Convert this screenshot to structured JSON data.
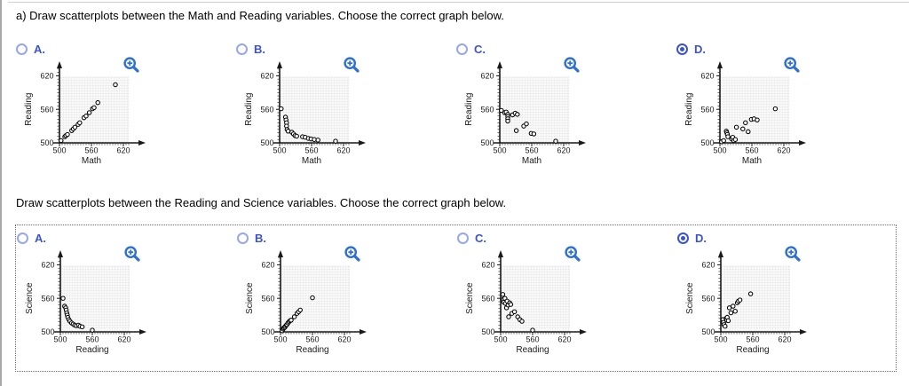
{
  "page": {
    "colors": {
      "option_blue": "#3b53cf",
      "radio_unselected_ring": "#98a7e8",
      "magnifier_blue": "#2d6fd2",
      "grid_fill": "#e8e8e8",
      "grid_line": "#ffffff",
      "axis_color": "#1a1a1a",
      "dashed_border": "#6e6e6e"
    },
    "icons": {
      "zoom_icon": "magnifier-with-plus"
    }
  },
  "questions": [
    {
      "text": "a) Draw scatterplots between the Math and Reading variables. Choose the correct graph below.",
      "options": [
        {
          "letter": "A.",
          "selected": false,
          "chart": {
            "type": "scatter",
            "xlabel": "Math",
            "ylabel": "Reading",
            "xticks": [
              500,
              560,
              620
            ],
            "yticks": [
              620,
              560,
              500
            ],
            "xlim": [
              500,
              630
            ],
            "ylim": [
              500,
              625
            ],
            "points": [
              [
                503,
                504
              ],
              [
                510,
                511
              ],
              [
                512,
                513
              ],
              [
                515,
                515
              ],
              [
                523,
                522
              ],
              [
                526,
                525
              ],
              [
                529,
                528
              ],
              [
                535,
                533
              ],
              [
                538,
                536
              ],
              [
                546,
                545
              ],
              [
                550,
                548
              ],
              [
                556,
                554
              ],
              [
                562,
                561
              ],
              [
                565,
                563
              ],
              [
                572,
                572
              ],
              [
                605,
                604
              ]
            ]
          }
        },
        {
          "letter": "B.",
          "selected": false,
          "chart": {
            "type": "scatter",
            "xlabel": "Math",
            "ylabel": "Reading",
            "xticks": [
              500,
              560,
              620
            ],
            "yticks": [
              620,
              560,
              500
            ],
            "xlim": [
              500,
              630
            ],
            "ylim": [
              500,
              625
            ],
            "points": [
              [
                503,
                561
              ],
              [
                511,
                546
              ],
              [
                512,
                541
              ],
              [
                513,
                536
              ],
              [
                513,
                530
              ],
              [
                514,
                524
              ],
              [
                516,
                521
              ],
              [
                523,
                519
              ],
              [
                526,
                516
              ],
              [
                529,
                513
              ],
              [
                532,
                512
              ],
              [
                543,
                511
              ],
              [
                548,
                510
              ],
              [
                554,
                508
              ],
              [
                559,
                507
              ],
              [
                565,
                506
              ],
              [
                572,
                505
              ],
              [
                605,
                503
              ]
            ]
          }
        },
        {
          "letter": "C.",
          "selected": false,
          "chart": {
            "type": "scatter",
            "xlabel": "Math",
            "ylabel": "Reading",
            "xticks": [
              500,
              560,
              620
            ],
            "yticks": [
              620,
              560,
              500
            ],
            "xlim": [
              500,
              630
            ],
            "ylim": [
              500,
              625
            ],
            "points": [
              [
                503,
                558
              ],
              [
                509,
                554
              ],
              [
                512,
                555
              ],
              [
                515,
                551
              ],
              [
                515,
                547
              ],
              [
                515,
                543
              ],
              [
                515,
                539
              ],
              [
                524,
                550
              ],
              [
                529,
                553
              ],
              [
                533,
                551
              ],
              [
                531,
                522
              ],
              [
                545,
                530
              ],
              [
                550,
                534
              ],
              [
                559,
                517
              ],
              [
                564,
                516
              ],
              [
                605,
                503
              ]
            ]
          }
        },
        {
          "letter": "D.",
          "selected": true,
          "chart": {
            "type": "scatter",
            "xlabel": "Math",
            "ylabel": "Reading",
            "xticks": [
              500,
              560,
              620
            ],
            "yticks": [
              620,
              560,
              500
            ],
            "xlim": [
              500,
              630
            ],
            "ylim": [
              500,
              625
            ],
            "points": [
              [
                503,
                502
              ],
              [
                507,
                504
              ],
              [
                512,
                521
              ],
              [
                513,
                518
              ],
              [
                514,
                515
              ],
              [
                515,
                511
              ],
              [
                522,
                507
              ],
              [
                524,
                510
              ],
              [
                526,
                504
              ],
              [
                529,
                506
              ],
              [
                531,
                528
              ],
              [
                543,
                525
              ],
              [
                548,
                536
              ],
              [
                553,
                520
              ],
              [
                559,
                542
              ],
              [
                564,
                543
              ],
              [
                570,
                541
              ],
              [
                604,
                561
              ]
            ]
          }
        }
      ]
    },
    {
      "text": "Draw scatterplots between the Reading and Science variables. Choose the correct graph below.",
      "options": [
        {
          "letter": "A.",
          "selected": false,
          "chart": {
            "type": "scatter",
            "xlabel": "Reading",
            "ylabel": "Science",
            "xticks": [
              500,
              560,
              620
            ],
            "yticks": [
              620,
              560,
              500
            ],
            "xlim": [
              500,
              630
            ],
            "ylim": [
              500,
              625
            ],
            "points": [
              [
                505,
                560
              ],
              [
                508,
                546
              ],
              [
                510,
                543
              ],
              [
                511,
                539
              ],
              [
                512,
                534
              ],
              [
                513,
                530
              ],
              [
                514,
                526
              ],
              [
                516,
                522
              ],
              [
                518,
                519
              ],
              [
                521,
                516
              ],
              [
                524,
                514
              ],
              [
                527,
                512
              ],
              [
                530,
                511
              ],
              [
                534,
                512
              ],
              [
                537,
                510
              ],
              [
                541,
                509
              ],
              [
                560,
                503
              ]
            ]
          }
        },
        {
          "letter": "B.",
          "selected": false,
          "chart": {
            "type": "scatter",
            "xlabel": "Reading",
            "ylabel": "Science",
            "xticks": [
              500,
              560,
              620
            ],
            "yticks": [
              620,
              560,
              500
            ],
            "xlim": [
              500,
              630
            ],
            "ylim": [
              500,
              625
            ],
            "points": [
              [
                503,
                502
              ],
              [
                505,
                505
              ],
              [
                506,
                507
              ],
              [
                508,
                508
              ],
              [
                509,
                510
              ],
              [
                511,
                512
              ],
              [
                512,
                513
              ],
              [
                514,
                516
              ],
              [
                516,
                518
              ],
              [
                518,
                520
              ],
              [
                520,
                521
              ],
              [
                526,
                527
              ],
              [
                531,
                533
              ],
              [
                534,
                536
              ],
              [
                537,
                539
              ],
              [
                560,
                561
              ]
            ]
          }
        },
        {
          "letter": "C.",
          "selected": false,
          "chart": {
            "type": "scatter",
            "xlabel": "Reading",
            "ylabel": "Science",
            "xticks": [
              500,
              560,
              620
            ],
            "yticks": [
              620,
              560,
              500
            ],
            "xlim": [
              500,
              630
            ],
            "ylim": [
              500,
              625
            ],
            "points": [
              [
                504,
                567
              ],
              [
                505,
                558
              ],
              [
                506,
                553
              ],
              [
                508,
                560
              ],
              [
                509,
                551
              ],
              [
                511,
                543
              ],
              [
                512,
                555
              ],
              [
                514,
                548
              ],
              [
                515,
                527
              ],
              [
                517,
                552
              ],
              [
                519,
                549
              ],
              [
                521,
                533
              ],
              [
                526,
                536
              ],
              [
                532,
                527
              ],
              [
                536,
                522
              ],
              [
                540,
                519
              ],
              [
                560,
                503
              ]
            ]
          }
        },
        {
          "letter": "D.",
          "selected": true,
          "chart": {
            "type": "scatter",
            "xlabel": "Reading",
            "ylabel": "Science",
            "xticks": [
              500,
              560,
              620
            ],
            "yticks": [
              620,
              560,
              500
            ],
            "xlim": [
              500,
              630
            ],
            "ylim": [
              500,
              625
            ],
            "points": [
              [
                504,
                522
              ],
              [
                505,
                517
              ],
              [
                506,
                513
              ],
              [
                508,
                510
              ],
              [
                510,
                524
              ],
              [
                511,
                521
              ],
              [
                512,
                526
              ],
              [
                514,
                520
              ],
              [
                516,
                543
              ],
              [
                519,
                534
              ],
              [
                523,
                546
              ],
              [
                527,
                537
              ],
              [
                531,
                552
              ],
              [
                533,
                555
              ],
              [
                536,
                557
              ],
              [
                556,
                568
              ]
            ]
          }
        }
      ]
    }
  ]
}
